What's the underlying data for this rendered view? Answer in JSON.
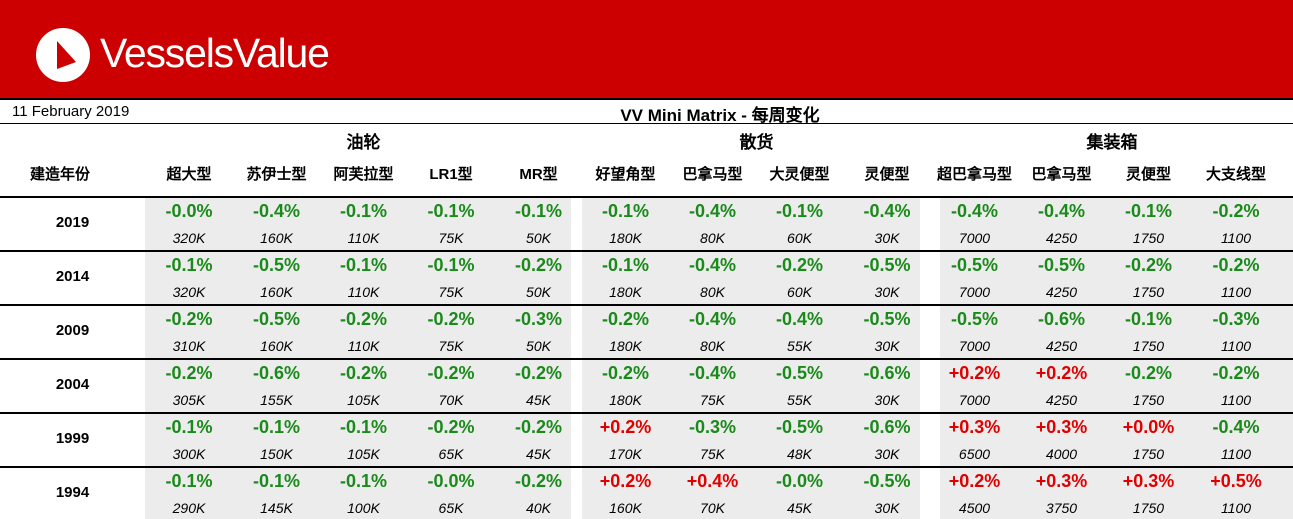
{
  "brand": {
    "name": "VesselsValue"
  },
  "header": {
    "date": "11 February 2019",
    "title": "VV Mini Matrix - 每周变化"
  },
  "groups": [
    {
      "label": "油轮"
    },
    {
      "label": "散货"
    },
    {
      "label": "集装箱"
    }
  ],
  "year_header": "建造年份",
  "columns": [
    "超大型",
    "苏伊士型",
    "阿芙拉型",
    "LR1型",
    "MR型",
    "好望角型",
    "巴拿马型",
    "大灵便型",
    "灵便型",
    "超巴拿马型",
    "巴拿马型",
    "灵便型",
    "大支线型"
  ],
  "rows": [
    {
      "year": "2019",
      "pct": [
        "-0.0%",
        "-0.4%",
        "-0.1%",
        "-0.1%",
        "-0.1%",
        "-0.1%",
        "-0.4%",
        "-0.1%",
        "-0.4%",
        "-0.4%",
        "-0.4%",
        "-0.1%",
        "-0.2%"
      ],
      "val": [
        "320K",
        "160K",
        "110K",
        "75K",
        "50K",
        "180K",
        "80K",
        "60K",
        "30K",
        "7000",
        "4250",
        "1750",
        "1100"
      ]
    },
    {
      "year": "2014",
      "pct": [
        "-0.1%",
        "-0.5%",
        "-0.1%",
        "-0.1%",
        "-0.2%",
        "-0.1%",
        "-0.4%",
        "-0.2%",
        "-0.5%",
        "-0.5%",
        "-0.5%",
        "-0.2%",
        "-0.2%"
      ],
      "val": [
        "320K",
        "160K",
        "110K",
        "75K",
        "50K",
        "180K",
        "80K",
        "60K",
        "30K",
        "7000",
        "4250",
        "1750",
        "1100"
      ]
    },
    {
      "year": "2009",
      "pct": [
        "-0.2%",
        "-0.5%",
        "-0.2%",
        "-0.2%",
        "-0.3%",
        "-0.2%",
        "-0.4%",
        "-0.4%",
        "-0.5%",
        "-0.5%",
        "-0.6%",
        "-0.1%",
        "-0.3%"
      ],
      "val": [
        "310K",
        "160K",
        "110K",
        "75K",
        "50K",
        "180K",
        "80K",
        "55K",
        "30K",
        "7000",
        "4250",
        "1750",
        "1100"
      ]
    },
    {
      "year": "2004",
      "pct": [
        "-0.2%",
        "-0.6%",
        "-0.2%",
        "-0.2%",
        "-0.2%",
        "-0.2%",
        "-0.4%",
        "-0.5%",
        "-0.6%",
        "+0.2%",
        "+0.2%",
        "-0.2%",
        "-0.2%"
      ],
      "val": [
        "305K",
        "155K",
        "105K",
        "70K",
        "45K",
        "180K",
        "75K",
        "55K",
        "30K",
        "7000",
        "4250",
        "1750",
        "1100"
      ]
    },
    {
      "year": "1999",
      "pct": [
        "-0.1%",
        "-0.1%",
        "-0.1%",
        "-0.2%",
        "-0.2%",
        "+0.2%",
        "-0.3%",
        "-0.5%",
        "-0.6%",
        "+0.3%",
        "+0.3%",
        "+0.0%",
        "-0.4%"
      ],
      "val": [
        "300K",
        "150K",
        "105K",
        "65K",
        "45K",
        "170K",
        "75K",
        "48K",
        "30K",
        "6500",
        "4000",
        "1750",
        "1100"
      ]
    },
    {
      "year": "1994",
      "pct": [
        "-0.1%",
        "-0.1%",
        "-0.1%",
        "-0.0%",
        "-0.2%",
        "+0.2%",
        "+0.4%",
        "-0.0%",
        "-0.5%",
        "+0.2%",
        "+0.3%",
        "+0.3%",
        "+0.5%"
      ],
      "val": [
        "290K",
        "145K",
        "100K",
        "65K",
        "40K",
        "160K",
        "70K",
        "45K",
        "30K",
        "4500",
        "3750",
        "1750",
        "1100"
      ]
    }
  ],
  "colors": {
    "banner": "#cc0000",
    "negative": "#1a8a1a",
    "positive": "#e00000",
    "shade": "#ececec"
  }
}
